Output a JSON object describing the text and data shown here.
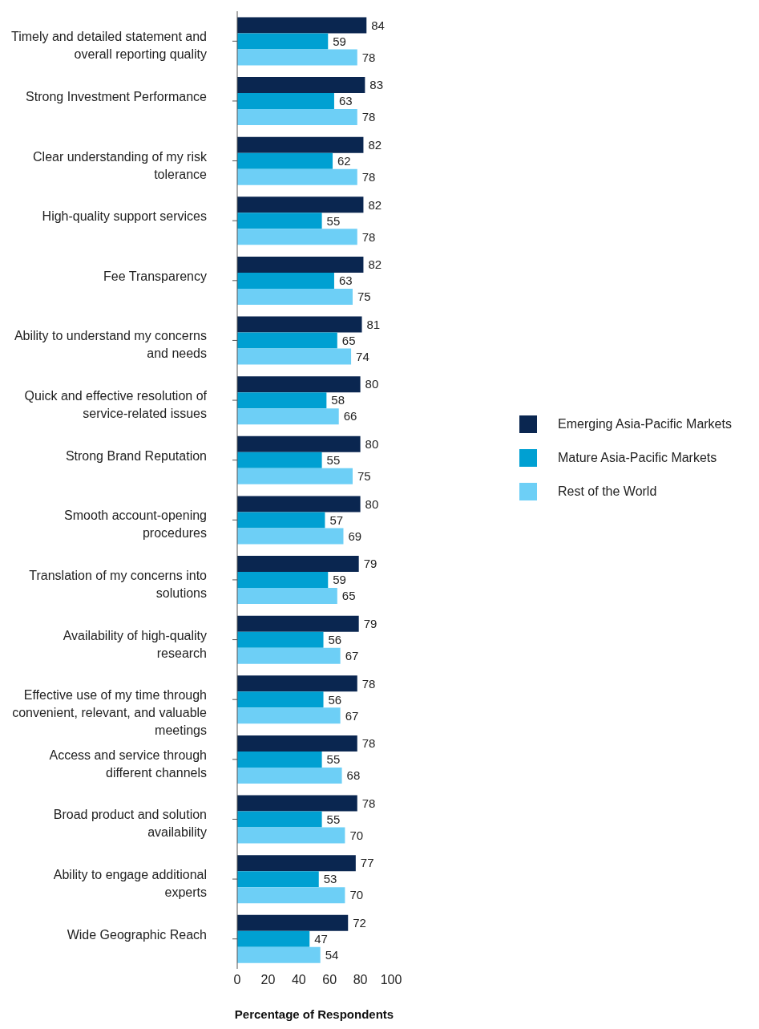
{
  "chart_data": {
    "type": "bar",
    "orientation": "horizontal",
    "xlabel": "Percentage of Respondents",
    "categories": [
      "Timely and detailed statement and overall reporting quality",
      "Strong Investment Performance",
      "Clear understanding of my risk tolerance",
      "High-quality support services",
      "Fee Transparency",
      "Ability to understand my concerns and needs",
      "Quick and effective resolution of service-related issues",
      "Strong Brand Reputation",
      "Smooth account-opening procedures",
      "Translation of my concerns into solutions",
      "Availability of high-quality research",
      "Effective use of my time through convenient, relevant, and valuable meetings",
      "Access and service through different channels",
      "Broad product and solution availability",
      "Ability to engage additional experts",
      "Wide Geographic Reach"
    ],
    "series": [
      {
        "name": "Emerging Asia-Pacific Markets",
        "color": "#0a2650",
        "values": [
          84,
          83,
          82,
          82,
          82,
          81,
          80,
          80,
          80,
          79,
          79,
          78,
          78,
          78,
          77,
          72
        ]
      },
      {
        "name": "Mature Asia-Pacific Markets",
        "color": "#00a0d2",
        "values": [
          59,
          63,
          62,
          55,
          63,
          65,
          58,
          55,
          57,
          59,
          56,
          56,
          55,
          55,
          53,
          47
        ]
      },
      {
        "name": "Rest of the World",
        "color": "#6dcff6",
        "values": [
          78,
          78,
          78,
          78,
          75,
          74,
          66,
          75,
          69,
          65,
          67,
          67,
          68,
          70,
          70,
          54
        ]
      }
    ],
    "xlim": [
      0,
      100
    ],
    "xticks": [
      0,
      20,
      40,
      60,
      80,
      100
    ],
    "data_labels": true,
    "legend": "right",
    "grid": false
  }
}
